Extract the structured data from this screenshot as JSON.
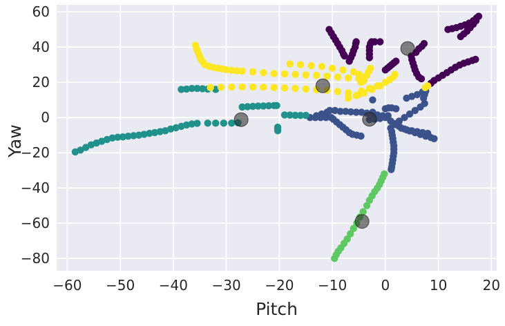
{
  "chart_data": {
    "type": "scatter",
    "title": "",
    "xlabel": "Pitch",
    "ylabel": "Yaw",
    "xlim": [
      -62,
      21
    ],
    "ylim": [
      -87,
      64
    ],
    "xticks": [
      -60,
      -50,
      -40,
      -30,
      -20,
      -10,
      0,
      10,
      20
    ],
    "yticks": [
      -80,
      -60,
      -40,
      -20,
      0,
      20,
      40,
      60
    ],
    "xtick_labels": [
      "−60",
      "−50",
      "−40",
      "−30",
      "−20",
      "−10",
      "0",
      "10",
      "20"
    ],
    "ytick_labels": [
      "−80",
      "−60",
      "−40",
      "−20",
      "0",
      "20",
      "40",
      "60"
    ],
    "grid": true,
    "legend": "none",
    "background": "#eaeaf2",
    "series": [
      {
        "color": "#440154",
        "points": [
          [
            -10.6,
            50
          ],
          [
            -10.2,
            48
          ],
          [
            -9.8,
            46
          ],
          [
            -9.4,
            44
          ],
          [
            -9,
            42
          ],
          [
            -8.6,
            40
          ],
          [
            -8.2,
            38
          ],
          [
            -7.9,
            36
          ],
          [
            -7.7,
            35
          ],
          [
            -6.8,
            32
          ],
          [
            -6.5,
            34
          ],
          [
            -6.2,
            36
          ],
          [
            -6,
            38
          ],
          [
            -5.7,
            40
          ],
          [
            -5.6,
            42
          ],
          [
            -5.5,
            43
          ],
          [
            -3,
            34
          ],
          [
            -3,
            36
          ],
          [
            -3,
            38
          ],
          [
            -3,
            40
          ],
          [
            -2.8,
            42
          ],
          [
            -2.6,
            43
          ],
          [
            -2,
            43
          ],
          [
            -1,
            43
          ],
          [
            0,
            27
          ],
          [
            0.4,
            28
          ],
          [
            0.8,
            29
          ],
          [
            1.2,
            30
          ],
          [
            1.6,
            31
          ],
          [
            2,
            32
          ],
          [
            4.9,
            35
          ],
          [
            5,
            33
          ],
          [
            5.2,
            31
          ],
          [
            5.4,
            29
          ],
          [
            5.6,
            27
          ],
          [
            5.9,
            25
          ],
          [
            6.3,
            23
          ],
          [
            6.8,
            22
          ],
          [
            5.8,
            37
          ],
          [
            6.3,
            39
          ],
          [
            6.9,
            40.5
          ],
          [
            7.3,
            42
          ],
          [
            8.6,
            19.5
          ],
          [
            9.2,
            21
          ],
          [
            10,
            22.5
          ],
          [
            10.8,
            24
          ],
          [
            11.6,
            25.5
          ],
          [
            12.4,
            27
          ],
          [
            13.2,
            28.5
          ],
          [
            14,
            29.8
          ],
          [
            14.8,
            30.8
          ],
          [
            15.6,
            31.6
          ],
          [
            16.4,
            32.4
          ],
          [
            17,
            33
          ],
          [
            11.8,
            50
          ],
          [
            12.6,
            50.5
          ],
          [
            13.4,
            51
          ],
          [
            14.2,
            51.8
          ],
          [
            15,
            52.6
          ],
          [
            15.8,
            53.6
          ],
          [
            16.6,
            55
          ],
          [
            17.2,
            56.5
          ],
          [
            17.6,
            57.5
          ],
          [
            14.2,
            46
          ],
          [
            14.8,
            47.5
          ],
          [
            15.4,
            49
          ],
          [
            16,
            51
          ],
          [
            16.6,
            53
          ],
          [
            17.1,
            55
          ]
        ]
      },
      {
        "color": "#3b528b",
        "points": [
          [
            -14.2,
            0
          ],
          [
            -13.2,
            0
          ],
          [
            -12.2,
            0
          ],
          [
            -11.2,
            0
          ],
          [
            -10.2,
            0
          ],
          [
            -13,
            1
          ],
          [
            -12,
            2
          ],
          [
            -11,
            3
          ],
          [
            -10.5,
            4
          ],
          [
            -9.5,
            4
          ],
          [
            -8.5,
            3.5
          ],
          [
            -7.5,
            3.5
          ],
          [
            -6.5,
            3.2
          ],
          [
            -5.5,
            3
          ],
          [
            -4.5,
            3
          ],
          [
            -3.5,
            2.5
          ],
          [
            -2.5,
            2
          ],
          [
            -1.5,
            1.5
          ],
          [
            -0.5,
            1
          ],
          [
            -9.8,
            -1
          ],
          [
            -9.2,
            -2.5
          ],
          [
            -8.6,
            -4
          ],
          [
            -8,
            -5.5
          ],
          [
            -7.4,
            -7
          ],
          [
            -6.8,
            -8.5
          ],
          [
            -6.2,
            -9.5
          ],
          [
            -5.4,
            -10
          ],
          [
            -4.6,
            -10.5
          ],
          [
            -3,
            -1.2
          ],
          [
            -2,
            -1
          ],
          [
            -1,
            -0.5
          ],
          [
            0,
            0
          ],
          [
            0.5,
            1
          ],
          [
            0,
            5
          ],
          [
            0.6,
            5.5
          ],
          [
            1.2,
            5.5
          ],
          [
            2,
            5
          ],
          [
            -2.4,
            3
          ],
          [
            -2.4,
            10
          ],
          [
            1,
            -2
          ],
          [
            1.8,
            -3.5
          ],
          [
            2.6,
            -5
          ],
          [
            3.6,
            -6.5
          ],
          [
            4.6,
            -7.6
          ],
          [
            5.6,
            -8.6
          ],
          [
            6.6,
            -9.6
          ],
          [
            7.6,
            -10.6
          ],
          [
            8.6,
            -11.4
          ],
          [
            9.2,
            -12
          ],
          [
            2,
            -4
          ],
          [
            3,
            -6
          ],
          [
            4,
            -7
          ],
          [
            5,
            -7.5
          ],
          [
            6,
            -8
          ],
          [
            7,
            -8.5
          ],
          [
            8,
            -9
          ],
          [
            1,
            -6
          ],
          [
            1.2,
            -8
          ],
          [
            1.3,
            -10
          ],
          [
            1.4,
            -12
          ],
          [
            1.5,
            -14
          ],
          [
            1.6,
            -16
          ],
          [
            1.6,
            -18
          ],
          [
            1.6,
            -20
          ],
          [
            1.5,
            -22
          ],
          [
            1.4,
            -24
          ],
          [
            1.3,
            -26
          ],
          [
            1.2,
            -28
          ],
          [
            1.1,
            -29.5
          ],
          [
            2.6,
            -2
          ],
          [
            3.6,
            0
          ],
          [
            4.6,
            2
          ],
          [
            5.6,
            4
          ],
          [
            6.6,
            6
          ],
          [
            7.4,
            8
          ],
          [
            7.2,
            11
          ],
          [
            7.4,
            13
          ],
          [
            7.6,
            15
          ],
          [
            4,
            11
          ],
          [
            5,
            12
          ],
          [
            6,
            13
          ],
          [
            7,
            14.5
          ]
        ]
      },
      {
        "color": "#21918c",
        "points": [
          [
            -58.5,
            -19.5
          ],
          [
            -57.5,
            -18.5
          ],
          [
            -56.5,
            -17
          ],
          [
            -55.5,
            -15.5
          ],
          [
            -54.5,
            -14.5
          ],
          [
            -53.5,
            -13.5
          ],
          [
            -52.5,
            -12.5
          ],
          [
            -51.5,
            -11.6
          ],
          [
            -50.5,
            -11.2
          ],
          [
            -49.5,
            -11
          ],
          [
            -48.5,
            -10.6
          ],
          [
            -47.5,
            -10.3
          ],
          [
            -46.5,
            -10
          ],
          [
            -45.5,
            -9.5
          ],
          [
            -44.5,
            -9
          ],
          [
            -43.5,
            -8.5
          ],
          [
            -42.5,
            -8
          ],
          [
            -41.5,
            -7.5
          ],
          [
            -40.5,
            -6.5
          ],
          [
            -39.5,
            -5.8
          ],
          [
            -38.5,
            -5
          ],
          [
            -37.5,
            -4.2
          ],
          [
            -36.5,
            -3.6
          ],
          [
            -35.5,
            -3.3
          ],
          [
            -33.5,
            -3.2
          ],
          [
            -32,
            -3.2
          ],
          [
            -30.5,
            -3.2
          ],
          [
            -29,
            -3.2
          ],
          [
            -27.8,
            -3
          ],
          [
            -38.5,
            16
          ],
          [
            -37.5,
            16.2
          ],
          [
            -36.5,
            16.5
          ],
          [
            -35.5,
            16.5
          ],
          [
            -34.5,
            16.4
          ],
          [
            -33.5,
            16.2
          ],
          [
            -32,
            16
          ],
          [
            -27,
            6
          ],
          [
            -26,
            6.2
          ],
          [
            -25,
            6.4
          ],
          [
            -24,
            6.5
          ],
          [
            -23,
            6.6
          ],
          [
            -22,
            6.7
          ],
          [
            -21,
            6.8
          ],
          [
            -20.5,
            6.8
          ],
          [
            -20.3,
            -5.5
          ],
          [
            -20.3,
            -6.5
          ],
          [
            -20.3,
            -7.5
          ],
          [
            -19,
            1.5
          ],
          [
            -18,
            1.4
          ],
          [
            -17,
            1.3
          ],
          [
            -16,
            1.2
          ],
          [
            -15,
            1.2
          ]
        ]
      },
      {
        "color": "#5ec962",
        "points": [
          [
            -0.2,
            -32
          ],
          [
            -0.5,
            -34
          ],
          [
            -0.8,
            -36
          ],
          [
            -1.1,
            -38
          ],
          [
            -1.5,
            -40
          ],
          [
            -2,
            -42
          ],
          [
            -2.5,
            -44.5
          ],
          [
            -3,
            -47
          ],
          [
            -3.5,
            -50
          ],
          [
            -4.2,
            -53.5
          ],
          [
            -4.8,
            -56.5
          ],
          [
            -5.4,
            -60
          ],
          [
            -6,
            -63
          ],
          [
            -6.6,
            -66
          ],
          [
            -7.2,
            -69
          ],
          [
            -7.8,
            -71.5
          ],
          [
            -8.4,
            -74
          ],
          [
            -8.9,
            -76
          ],
          [
            -9.3,
            -78
          ],
          [
            -9.6,
            -80
          ]
        ]
      },
      {
        "color": "#fde725",
        "points": [
          [
            -35.8,
            41
          ],
          [
            -35.6,
            39
          ],
          [
            -35.4,
            37.5
          ],
          [
            -35.2,
            36
          ],
          [
            -35,
            34.5
          ],
          [
            -34.8,
            33
          ],
          [
            -34.4,
            31.5
          ],
          [
            -34,
            30
          ],
          [
            -33.2,
            29
          ],
          [
            -32.4,
            28.4
          ],
          [
            -31.6,
            28
          ],
          [
            -30.8,
            27.6
          ],
          [
            -30,
            27.2
          ],
          [
            -29,
            26.8
          ],
          [
            -28,
            26.5
          ],
          [
            -27,
            26.4
          ],
          [
            -25,
            26
          ],
          [
            -23,
            25.5
          ],
          [
            -21,
            25
          ],
          [
            -19,
            24.8
          ],
          [
            -17,
            24.5
          ],
          [
            -15,
            24.2
          ],
          [
            -13,
            24
          ],
          [
            -11,
            23.5
          ],
          [
            -9,
            23
          ],
          [
            -7,
            22.5
          ],
          [
            -5,
            22
          ],
          [
            -33,
            17
          ],
          [
            -31,
            17.2
          ],
          [
            -29,
            17.3
          ],
          [
            -27,
            17.4
          ],
          [
            -25,
            17.3
          ],
          [
            -23,
            17.2
          ],
          [
            -21,
            17
          ],
          [
            -19,
            16.8
          ],
          [
            -17,
            16.5
          ],
          [
            -15,
            16.2
          ],
          [
            -13,
            15.8
          ],
          [
            -11,
            15.5
          ],
          [
            -9,
            14.8
          ],
          [
            -7,
            14
          ],
          [
            -5,
            13
          ],
          [
            -18,
            30.5
          ],
          [
            -16,
            30
          ],
          [
            -14,
            29.5
          ],
          [
            -12,
            29
          ],
          [
            -10,
            28
          ],
          [
            -8,
            27
          ],
          [
            -6,
            26
          ],
          [
            -5,
            24.5
          ],
          [
            -4.4,
            23
          ],
          [
            -4,
            21
          ],
          [
            -7,
            11
          ],
          [
            -5.5,
            12.5
          ],
          [
            -4,
            14
          ],
          [
            -2.5,
            16
          ],
          [
            -1,
            18
          ],
          [
            0,
            20
          ],
          [
            0.8,
            21.5
          ],
          [
            1.5,
            23
          ],
          [
            1.8,
            24.5
          ],
          [
            -4.6,
            20
          ],
          [
            -4,
            22
          ],
          [
            -3.5,
            24
          ],
          [
            -3.2,
            26
          ],
          [
            -2.8,
            28
          ],
          [
            -4.5,
            15
          ],
          [
            -3,
            16.5
          ],
          [
            -1.5,
            18
          ],
          [
            7.5,
            17
          ],
          [
            8,
            18
          ]
        ]
      }
    ],
    "centroids": {
      "color": "#333333",
      "points": [
        [
          -27.2,
          -1.2
        ],
        [
          -11.8,
          18
        ],
        [
          -3,
          -1
        ],
        [
          4.2,
          39.2
        ],
        [
          -4.4,
          -59
        ]
      ]
    }
  }
}
